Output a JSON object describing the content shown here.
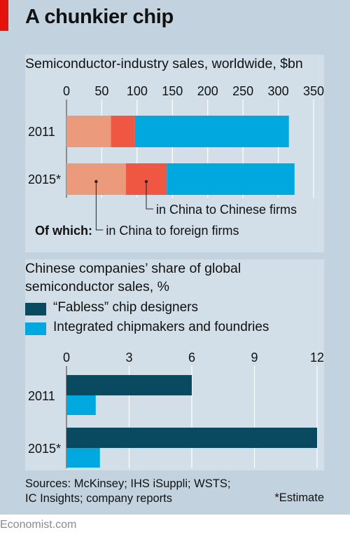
{
  "title": "A chunkier chip",
  "colors": {
    "foreign_firms": "#ec9a7c",
    "chinese_firms": "#f05742",
    "other": "#00a8e0",
    "fabless": "#0a4a60",
    "integrated": "#00a8e0"
  },
  "chart_data": [
    {
      "type": "bar",
      "orientation": "horizontal",
      "stacked": true,
      "title": "Semiconductor-industry sales, worldwide, $bn",
      "categories": [
        "2011",
        "2015*"
      ],
      "series": [
        {
          "name": "in China to foreign firms",
          "values": [
            63,
            84
          ]
        },
        {
          "name": "in China to Chinese firms",
          "values": [
            34,
            58
          ]
        },
        {
          "values": [
            218,
            181
          ]
        }
      ],
      "xlim": [
        0,
        350
      ],
      "xticks": [
        "0",
        "50",
        "100",
        "150",
        "200",
        "250",
        "300",
        "350"
      ],
      "axis_position": "top",
      "annotation_heading": "Of which:"
    },
    {
      "type": "bar",
      "orientation": "horizontal",
      "title": "Chinese companies’ share of global semiconductor sales, %",
      "categories": [
        "2011",
        "2015*"
      ],
      "series": [
        {
          "name": "“Fabless” chip designers",
          "values": [
            6,
            12
          ]
        },
        {
          "name": "Integrated chipmakers and foundries",
          "values": [
            1.4,
            1.6
          ]
        }
      ],
      "xlim": [
        0,
        12
      ],
      "xticks": [
        "0",
        "3",
        "6",
        "9",
        "12"
      ],
      "axis_position": "top",
      "legend": "top"
    }
  ],
  "footer": {
    "sources_line1": "Sources: McKinsey; IHS iSuppli; WSTS;",
    "sources_line2": "IC Insights; company reports",
    "note": "*Estimate",
    "brand": "Economist.com"
  }
}
